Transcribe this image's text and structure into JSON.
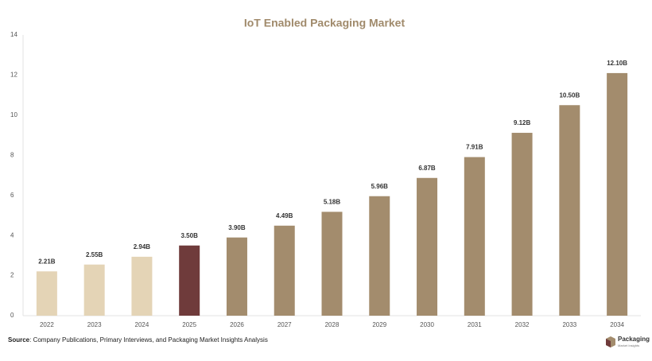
{
  "chart_data": {
    "type": "bar",
    "title": "IoT Enabled Packaging Market",
    "categories": [
      "2022",
      "2023",
      "2024",
      "2025",
      "2026",
      "2027",
      "2028",
      "2029",
      "2030",
      "2031",
      "2032",
      "2033",
      "2034"
    ],
    "values": [
      2.21,
      2.55,
      2.94,
      3.5,
      3.9,
      4.49,
      5.18,
      5.96,
      6.87,
      7.91,
      9.12,
      10.5,
      12.1
    ],
    "value_labels": [
      "2.21B",
      "2.55B",
      "2.94B",
      "3.50B",
      "3.90B",
      "4.49B",
      "5.18B",
      "5.96B",
      "6.87B",
      "7.91B",
      "9.12B",
      "10.50B",
      "12.10B"
    ],
    "colors": [
      "#e4d4b6",
      "#e4d4b6",
      "#e4d4b6",
      "#6f3b3b",
      "#a38c6d",
      "#a38c6d",
      "#a38c6d",
      "#a38c6d",
      "#a38c6d",
      "#a38c6d",
      "#a38c6d",
      "#a38c6d",
      "#a38c6d"
    ],
    "ylim": [
      0,
      14
    ],
    "yticks": [
      0,
      2,
      4,
      6,
      8,
      10,
      12,
      14
    ],
    "grid": false
  },
  "footer": {
    "source_label": "Source",
    "source_text": ": Company Publications, Primary Interviews, and Packaging Market Insights Analysis",
    "logo_title": "Packaging",
    "logo_subtitle": "Market Insights"
  }
}
